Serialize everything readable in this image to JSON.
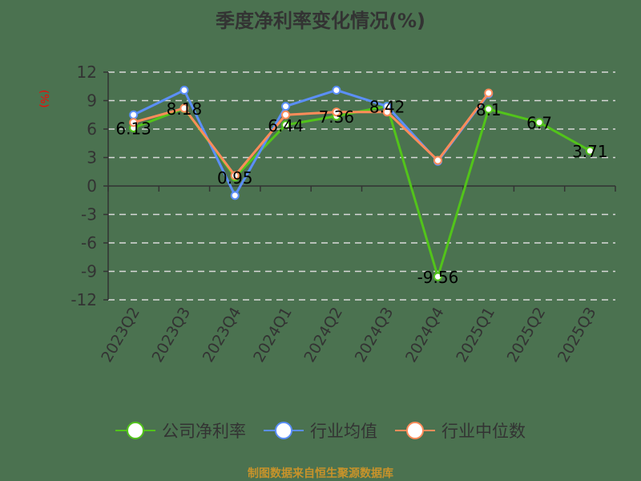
{
  "title": "季度净利率变化情况(%)",
  "footer": "制图数据来自恒生聚源数据库",
  "colors": {
    "background": "#4b7250",
    "company": "#52c41a",
    "industry_avg": "#5b8ff9",
    "industry_median": "#ff8c5a",
    "grid": "#d9d9d9",
    "axis": "#333333",
    "ylabel": "#ff0000",
    "footer": "#c8932a"
  },
  "legend": [
    {
      "name": "公司净利率",
      "color": "#52c41a"
    },
    {
      "name": "行业均值",
      "color": "#5b8ff9"
    },
    {
      "name": "行业中位数",
      "color": "#ff8c5a"
    }
  ],
  "chart_data": {
    "type": "line",
    "title": "季度净利率变化情况(%)",
    "xlabel": "",
    "ylabel": "(%)",
    "ylim": [
      -12,
      12
    ],
    "yticks": [
      12,
      9,
      6,
      3,
      0,
      -3,
      -6,
      -9,
      -12
    ],
    "grid": true,
    "legend_position": "bottom",
    "categories": [
      "2023Q2",
      "2023Q3",
      "2023Q4",
      "2024Q1",
      "2024Q2",
      "2024Q3",
      "2024Q4",
      "2025Q1",
      "2025Q2",
      "2025Q3"
    ],
    "series": [
      {
        "name": "公司净利率",
        "values": [
          6.13,
          8.18,
          0.95,
          6.44,
          7.36,
          8.42,
          -9.56,
          8.1,
          6.7,
          3.71
        ],
        "labels": [
          "6.13",
          "8.18",
          "0.95",
          "6.44",
          "7.36",
          "8.42",
          "-9.56",
          "8.1",
          "6.7",
          "3.71"
        ]
      },
      {
        "name": "行业均值",
        "values": [
          7.5,
          10.1,
          -1.0,
          8.4,
          10.1,
          8.4,
          2.6,
          9.7,
          null,
          null
        ]
      },
      {
        "name": "行业中位数",
        "values": [
          6.7,
          8.2,
          1.1,
          7.5,
          7.8,
          7.8,
          2.7,
          9.8,
          null,
          null
        ]
      }
    ]
  }
}
